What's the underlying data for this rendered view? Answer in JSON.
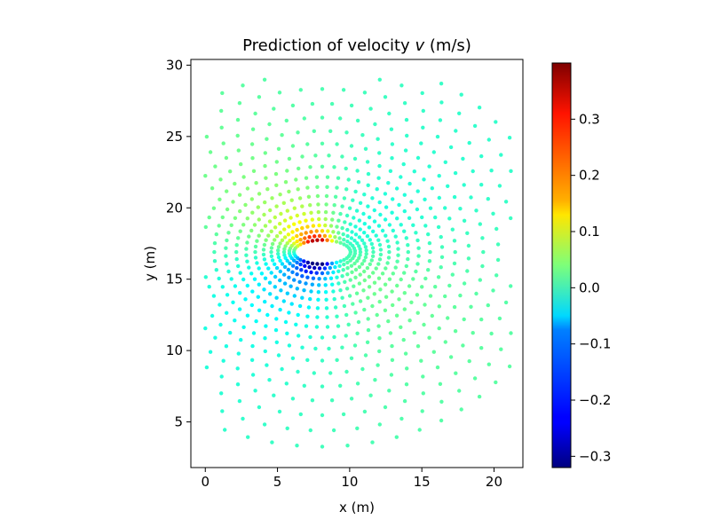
{
  "chart_data": {
    "type": "scatter",
    "title_prefix": "Prediction of velocity ",
    "title_var": "v",
    "title_suffix": " (m/s)",
    "xlabel": "x (m)",
    "ylabel": "y (m)",
    "xlim": [
      -1,
      22
    ],
    "ylim": [
      1.8,
      30.4
    ],
    "xticks": [
      0,
      5,
      10,
      15,
      20
    ],
    "yticks": [
      5,
      10,
      15,
      20,
      25,
      30
    ],
    "grid": false,
    "legend": "none",
    "colormap": "jet",
    "colorbar": {
      "vmin": -0.32,
      "vmax": 0.4,
      "ticks": [
        -0.3,
        -0.2,
        -0.1,
        0.0,
        0.1,
        0.2,
        0.3
      ],
      "tick_labels": [
        "−0.3",
        "−0.2",
        "−0.1",
        "0.0",
        "0.1",
        "0.2",
        "0.3"
      ]
    },
    "field": {
      "description": "Flow around an elliptical cylinder; points on polar rings around center",
      "center": [
        8.1,
        16.9
      ],
      "body_radii": [
        1.7,
        0.6
      ],
      "rings": [
        {
          "r": 0.25,
          "n": 36
        },
        {
          "r": 0.55,
          "n": 40
        },
        {
          "r": 0.9,
          "n": 44
        },
        {
          "r": 1.3,
          "n": 48
        },
        {
          "r": 1.75,
          "n": 50
        },
        {
          "r": 2.25,
          "n": 52
        },
        {
          "r": 2.8,
          "n": 54
        },
        {
          "r": 3.4,
          "n": 56
        },
        {
          "r": 4.05,
          "n": 58
        },
        {
          "r": 4.75,
          "n": 60
        },
        {
          "r": 5.5,
          "n": 60
        },
        {
          "r": 6.3,
          "n": 60
        },
        {
          "r": 7.15,
          "n": 60
        },
        {
          "r": 8.05,
          "n": 60
        },
        {
          "r": 9.0,
          "n": 60
        },
        {
          "r": 10.0,
          "n": 60
        },
        {
          "r": 11.05,
          "n": 60
        },
        {
          "r": 12.15,
          "n": 60
        },
        {
          "r": 13.3,
          "n": 60
        }
      ],
      "bounds": {
        "xmin": 0,
        "xmax": 21.2,
        "ymin": 2.8,
        "ymax": 29.2
      }
    }
  }
}
